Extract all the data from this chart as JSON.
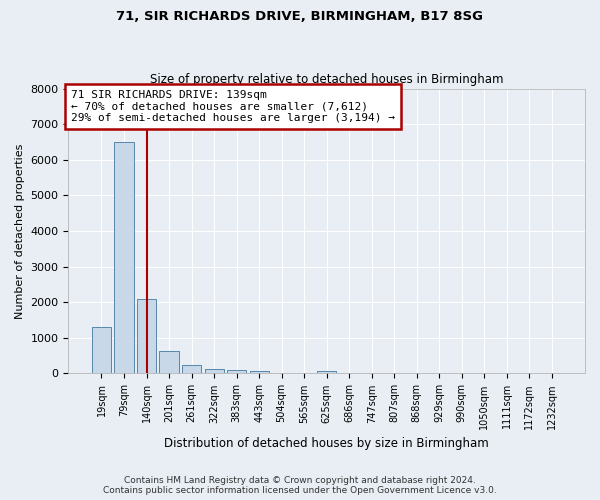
{
  "title": "71, SIR RICHARDS DRIVE, BIRMINGHAM, B17 8SG",
  "subtitle": "Size of property relative to detached houses in Birmingham",
  "xlabel": "Distribution of detached houses by size in Birmingham",
  "ylabel": "Number of detached properties",
  "footer_line1": "Contains HM Land Registry data © Crown copyright and database right 2024.",
  "footer_line2": "Contains public sector information licensed under the Open Government Licence v3.0.",
  "bar_labels": [
    "19sqm",
    "79sqm",
    "140sqm",
    "201sqm",
    "261sqm",
    "322sqm",
    "383sqm",
    "443sqm",
    "504sqm",
    "565sqm",
    "625sqm",
    "686sqm",
    "747sqm",
    "807sqm",
    "868sqm",
    "929sqm",
    "990sqm",
    "1050sqm",
    "1111sqm",
    "1172sqm",
    "1232sqm"
  ],
  "bar_values": [
    1300,
    6500,
    2080,
    620,
    250,
    130,
    90,
    55,
    0,
    0,
    65,
    0,
    0,
    0,
    0,
    0,
    0,
    0,
    0,
    0,
    0
  ],
  "bar_color": "#c8d8e8",
  "bar_edge_color": "#5588aa",
  "highlight_bin_index": 2,
  "highlight_color": "#aa0000",
  "ylim": [
    0,
    8000
  ],
  "annotation_line1": "71 SIR RICHARDS DRIVE: 139sqm",
  "annotation_line2": "← 70% of detached houses are smaller (7,612)",
  "annotation_line3": "29% of semi-detached houses are larger (3,194) →",
  "annotation_box_color": "#ffffff",
  "annotation_box_edge_color": "#aa0000",
  "background_color": "#e8eef4",
  "grid_color": "#ffffff",
  "title_fontsize": 9.5,
  "subtitle_fontsize": 8.5,
  "annotation_fontsize": 8.0
}
